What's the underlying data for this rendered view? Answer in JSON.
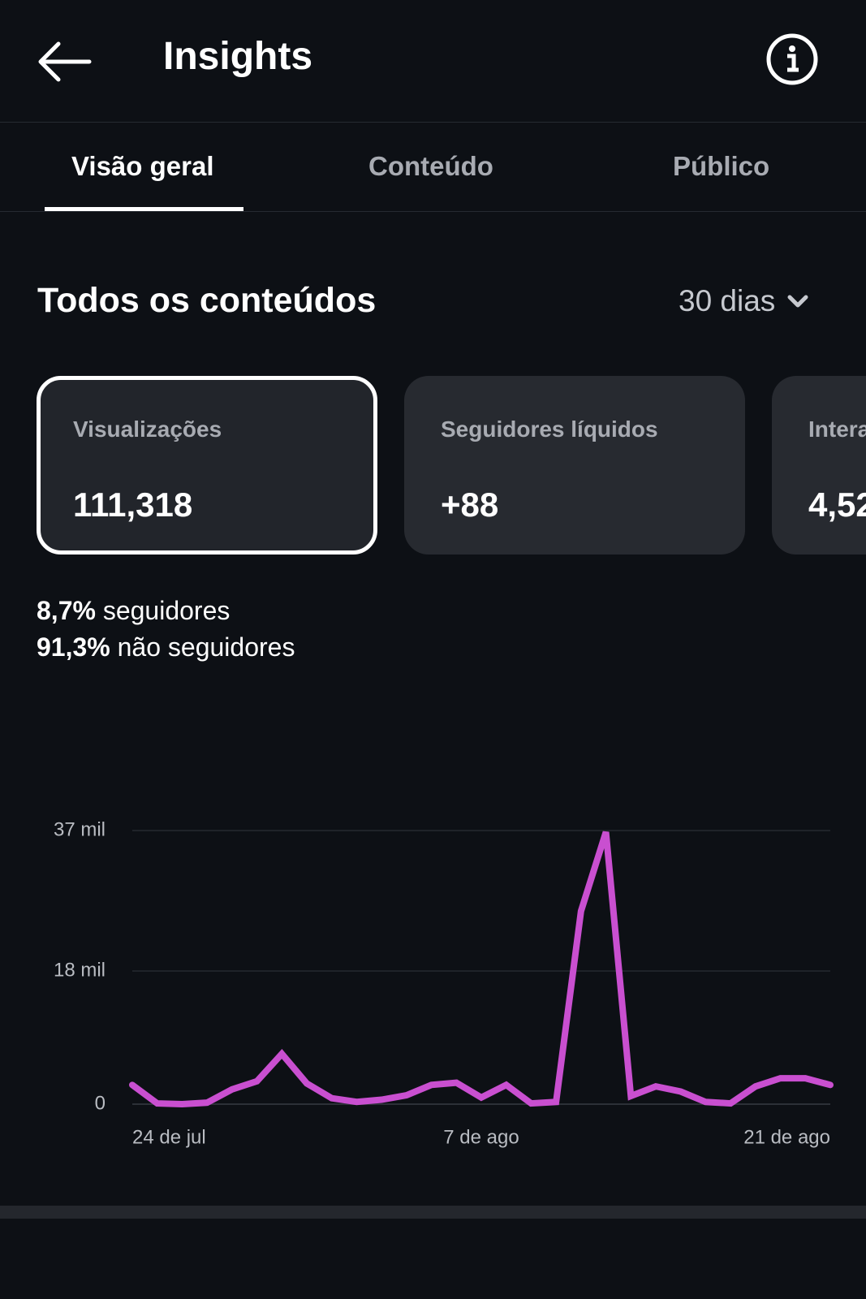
{
  "header": {
    "title": "Insights"
  },
  "tabs": [
    "Visão geral",
    "Conteúdo",
    "Público"
  ],
  "section": {
    "title": "Todos os conteúdos",
    "period": "30 dias"
  },
  "cards": [
    {
      "label": "Visualizações",
      "value": "111,318"
    },
    {
      "label": "Seguidores líquidos",
      "value": "+88"
    },
    {
      "label": "Intera",
      "value": "4,52"
    }
  ],
  "breakdown": [
    {
      "share": "8,7%",
      "label": "seguidores"
    },
    {
      "share": "91,3%",
      "label": "não seguidores"
    }
  ],
  "chart_data": {
    "type": "line",
    "categories": [
      "24 de jul",
      null,
      null,
      null,
      null,
      null,
      null,
      null,
      null,
      null,
      null,
      null,
      null,
      null,
      "7 de ago",
      null,
      null,
      null,
      null,
      null,
      null,
      null,
      null,
      null,
      null,
      null,
      null,
      null,
      "21 de ago"
    ],
    "values": [
      2600,
      100,
      0,
      200,
      2000,
      3100,
      6800,
      2800,
      800,
      300,
      600,
      1200,
      2600,
      2900,
      900,
      2600,
      100,
      300,
      26100,
      36800,
      1100,
      2400,
      1700,
      300,
      100,
      2400,
      3500,
      3500,
      2600
    ],
    "color": "#c94fd0",
    "ylim": [
      0,
      37000
    ],
    "yticks": [
      0,
      {
        "value": 18000,
        "label": "18 mil"
      },
      {
        "value": 37000,
        "label": "37 mil"
      }
    ],
    "grid": true
  }
}
